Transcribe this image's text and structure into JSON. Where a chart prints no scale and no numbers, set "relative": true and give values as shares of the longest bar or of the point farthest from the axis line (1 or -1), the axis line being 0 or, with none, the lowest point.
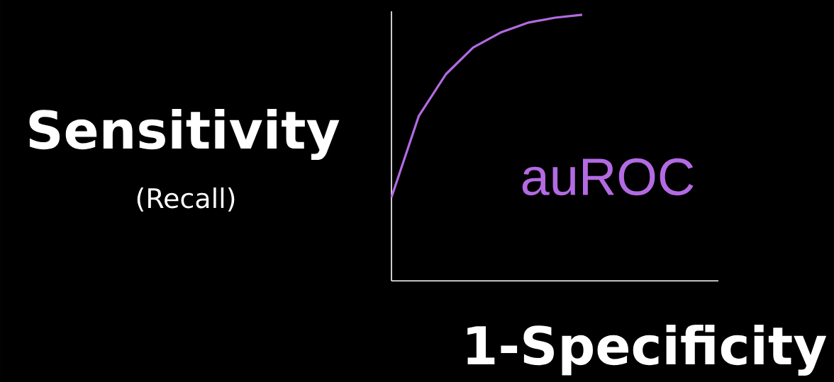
{
  "chart_data": {
    "type": "line",
    "relative": true,
    "xlabel": "1-Specificity",
    "ylabel": "Sensitivity",
    "annotations": [
      "(Recall)",
      "auROC"
    ],
    "categories": [
      null,
      null,
      null,
      null,
      null,
      null,
      null,
      null,
      null,
      null,
      null,
      null,
      null
    ],
    "values": [
      0.314,
      0.619,
      0.777,
      0.877,
      0.933,
      0.97,
      0.989,
      1.0,
      null,
      null,
      null,
      null,
      null
    ],
    "color": "#b36ae2"
  }
}
